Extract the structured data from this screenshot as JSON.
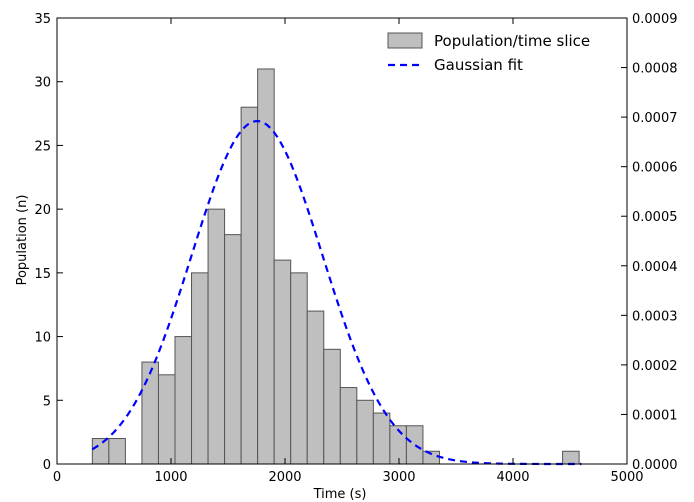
{
  "chart_data": {
    "type": "bar",
    "xlabel": "Time (s)",
    "ylabel": "Population (n)",
    "xlim": [
      0,
      5000
    ],
    "ylim": [
      0,
      35
    ],
    "y2lim": [
      0,
      0.0009
    ],
    "x_ticks": [
      "0",
      "1000",
      "2000",
      "3000",
      "4000",
      "5000"
    ],
    "y_ticks": [
      "0",
      "5",
      "10",
      "15",
      "20",
      "25",
      "30",
      "35"
    ],
    "y2_ticks": [
      "0.0000",
      "0.0001",
      "0.0002",
      "0.0003",
      "0.0004",
      "0.0005",
      "0.0006",
      "0.0007",
      "0.0008",
      "0.0009"
    ],
    "legend_position": "top-right",
    "grid": false,
    "series": [
      {
        "name": "Population/time slice",
        "kind": "histogram",
        "color": "#bfbfbf",
        "edge_color": "#555555",
        "bins": [
          {
            "x0": 310,
            "x1": 455,
            "value": 2
          },
          {
            "x0": 455,
            "x1": 600,
            "value": 2
          },
          {
            "x0": 600,
            "x1": 745,
            "value": 0
          },
          {
            "x0": 745,
            "x1": 890,
            "value": 8
          },
          {
            "x0": 890,
            "x1": 1035,
            "value": 7
          },
          {
            "x0": 1035,
            "x1": 1180,
            "value": 10
          },
          {
            "x0": 1180,
            "x1": 1325,
            "value": 15
          },
          {
            "x0": 1325,
            "x1": 1470,
            "value": 20
          },
          {
            "x0": 1470,
            "x1": 1615,
            "value": 18
          },
          {
            "x0": 1615,
            "x1": 1760,
            "value": 28
          },
          {
            "x0": 1760,
            "x1": 1905,
            "value": 31
          },
          {
            "x0": 1905,
            "x1": 2050,
            "value": 16
          },
          {
            "x0": 2050,
            "x1": 2195,
            "value": 15
          },
          {
            "x0": 2195,
            "x1": 2340,
            "value": 12
          },
          {
            "x0": 2340,
            "x1": 2485,
            "value": 9
          },
          {
            "x0": 2485,
            "x1": 2630,
            "value": 6
          },
          {
            "x0": 2630,
            "x1": 2775,
            "value": 5
          },
          {
            "x0": 2775,
            "x1": 2920,
            "value": 4
          },
          {
            "x0": 2920,
            "x1": 3065,
            "value": 3
          },
          {
            "x0": 3065,
            "x1": 3210,
            "value": 3
          },
          {
            "x0": 3210,
            "x1": 3355,
            "value": 1
          },
          {
            "x0": 4435,
            "x1": 4580,
            "value": 1
          }
        ]
      },
      {
        "name": "Gaussian fit",
        "kind": "line",
        "axis": "right",
        "color": "#0000ff",
        "line_style": "dashed",
        "x_range": [
          310,
          4600
        ],
        "mean": 1755,
        "sigma": 576,
        "peak": 0.000692
      }
    ]
  }
}
